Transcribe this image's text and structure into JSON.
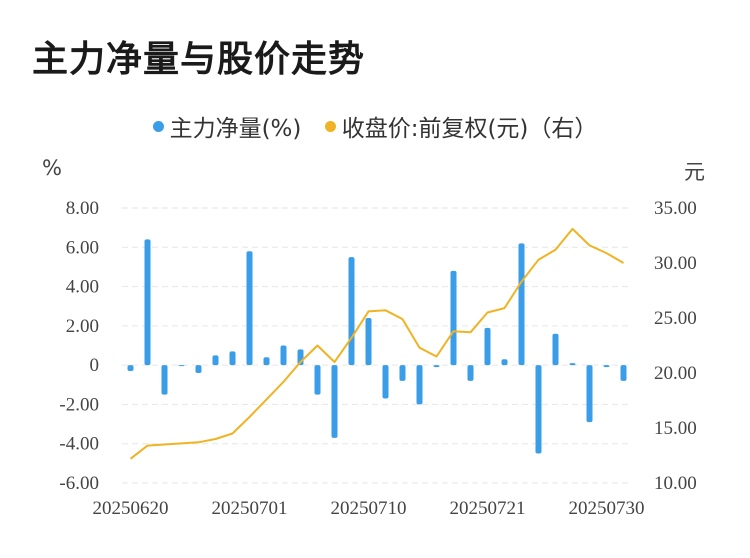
{
  "title": "主力净量与股价走势",
  "legend": [
    {
      "label": "主力净量(%)",
      "color": "#3a9de8"
    },
    {
      "label": "收盘价:前复权(元)（右）",
      "color": "#f0b323"
    }
  ],
  "left_unit": "%",
  "right_unit": "元",
  "colors": {
    "bar": "#3a9de8",
    "line": "#f0b323",
    "grid": "#e6e6e6"
  },
  "chart_data": {
    "type": "bar+line",
    "left_axis": {
      "ticks": [
        "8.00",
        "6.00",
        "4.00",
        "2.00",
        "0",
        "-2.00",
        "-4.00",
        "-6.00"
      ],
      "range": [
        -6,
        8
      ]
    },
    "right_axis": {
      "ticks": [
        "35.00",
        "30.00",
        "25.00",
        "20.00",
        "15.00",
        "10.00"
      ],
      "range": [
        10,
        35
      ]
    },
    "x_tick_labels": [
      "20250620",
      "20250701",
      "20250710",
      "20250721",
      "20250730"
    ],
    "x_tick_indices": [
      0,
      7,
      14,
      21,
      28
    ],
    "series": [
      {
        "name": "主力净量(%)",
        "type": "bar",
        "values": [
          -0.3,
          6.4,
          -1.5,
          0,
          -0.4,
          0.5,
          0.7,
          5.8,
          0.4,
          1.0,
          0.8,
          -1.5,
          -3.7,
          5.5,
          2.4,
          -1.7,
          -0.8,
          -2.0,
          -0.1,
          4.8,
          -0.8,
          1.9,
          0.3,
          6.2,
          -4.5,
          1.6,
          0.1,
          -2.9,
          -0.1,
          -0.8
        ]
      },
      {
        "name": "收盘价:前复权(元)（右）",
        "type": "line",
        "values": [
          12.2,
          13.4,
          13.5,
          13.6,
          13.7,
          14.0,
          14.5,
          16.0,
          17.6,
          19.2,
          21.0,
          22.5,
          21.0,
          23.2,
          25.6,
          25.7,
          24.9,
          22.3,
          21.5,
          23.8,
          23.7,
          25.5,
          25.9,
          28.3,
          30.3,
          31.2,
          33.1,
          31.6,
          30.9,
          30.0
        ]
      }
    ]
  }
}
